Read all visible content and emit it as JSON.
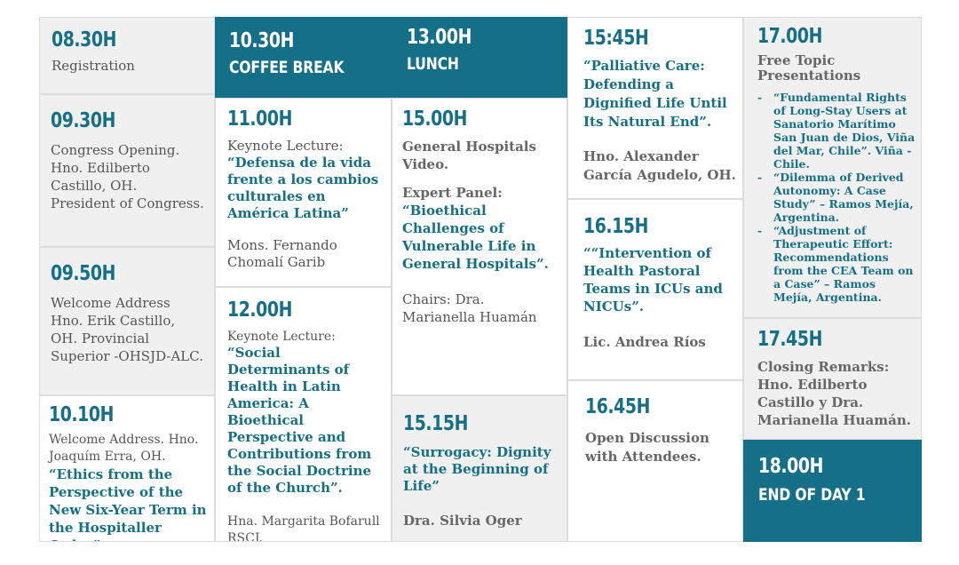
{
  "colors": {
    "accent": "#156f87",
    "cell_gray": "#f0f0f0",
    "text": "#555555"
  },
  "col1": {
    "s1": {
      "time": "08.30H",
      "text": "Registration"
    },
    "s2": {
      "time": "09.30H",
      "text": "Congress Opening. Hno. Edilberto Castillo, OH.  President of Congress."
    },
    "s3": {
      "time": "09.50H",
      "text": "Welcome Address Hno. Erik Castillo, OH.  Provincial Superior -OHSJD-ALC."
    },
    "s4": {
      "time": "10.10H",
      "intro": "Welcome Address. Hno. Joaquím Erra, OH.",
      "title": "“Ethics from the Perspective of the New Six-Year Term in the Hospitaller Order”"
    }
  },
  "col2": {
    "s1": {
      "time": "10.30H",
      "label": "COFFEE  BREAK"
    },
    "s2": {
      "time": "11.00H",
      "intro": "Keynote Lecture:",
      "title": "“Defensa de la vida frente a los cambios culturales en América Latina”",
      "speaker": "Mons. Fernando Chomalí Garib"
    },
    "s3": {
      "time": "12.00H",
      "intro": "Keynote Lecture:",
      "title": "“Social Determinants of Health in Latin America: A Bioethical Perspective and Contributions from the Social Doctrine of the Church”.",
      "speaker": "Hna. Margarita Bofarull RSCJ."
    }
  },
  "col3": {
    "s1": {
      "time": "13.00H",
      "label": "LUNCH"
    },
    "s2": {
      "time": "15.00H",
      "text": "General Hospitals Video.",
      "intro": "Expert Panel:",
      "title": "“Bioethical Challenges of Vulnerable Life in General Hospitals”.",
      "chairs": "Chairs: Dra. Marianella Huamán"
    },
    "s3": {
      "time": "15.15H",
      "title": "“Surrogacy: Dignity at the Beginning of Life”",
      "speaker": "Dra. Silvia Oger"
    }
  },
  "col4": {
    "s1": {
      "time": "15:45H",
      "title": "“Palliative Care: Defending a Dignified Life Until Its Natural End”.",
      "speaker": "Hno. Alexander García Agudelo, OH."
    },
    "s2": {
      "time": "16.15H",
      "title": "““Intervention of Health Pastoral Teams in ICUs and NICUs”.",
      "speaker": "Lic. Andrea Ríos"
    },
    "s3": {
      "time": "16.45H",
      "text": "Open Discussion with Attendees."
    }
  },
  "col5": {
    "s1": {
      "time": "17.00H",
      "text": "Free Topic Presentations",
      "items": [
        "“Fundamental Rights of Long-Stay Users at Sanatorio Marítimo San Juan de Dios, Viña del Mar, Chile”. Viña - Chile.",
        "“Dilemma of Derived Autonomy: A Case Study” – Ramos Mejía, Argentina.",
        "“Adjustment of Therapeutic Effort: Recommendations from the CEA Team on a Case” – Ramos Mejía, Argentina."
      ]
    },
    "s2": {
      "time": "17.45H",
      "text": "Closing Remarks: Hno. Edilberto Castillo y Dra. Marianella Huamán."
    },
    "s3": {
      "time": "18.00H",
      "label": "END OF DAY 1"
    }
  }
}
